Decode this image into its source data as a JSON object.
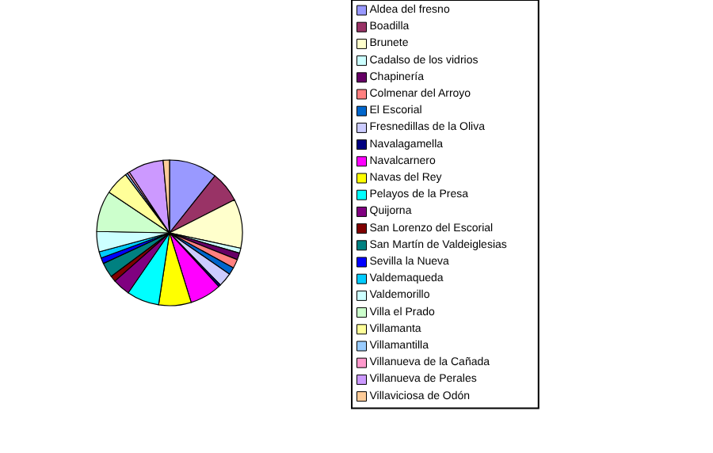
{
  "chart_data": {
    "type": "pie",
    "legend": "right",
    "categories": [
      "Aldea del fresno",
      "Boadilla",
      "Brunete",
      "Cadalso de los vidrios",
      "Chapinería",
      "Colmenar del Arroyo",
      "El Escorial",
      "Fresnedillas de la Oliva",
      "Navalagamella",
      "Navalcarnero",
      "Navas del Rey",
      "Pelayos de la Presa",
      "Quijorna",
      "San Lorenzo del Escorial",
      "San Martín de Valdeiglesias",
      "Sevilla la Nueva",
      "Valdemaqueda",
      "Valdemorillo",
      "Villa el Prado",
      "Villamanta",
      "Villamantilla",
      "Villanueva de la Cañada",
      "Villanueva de Perales",
      "Villaviciosa de Odón"
    ],
    "values": [
      10.7,
      6.8,
      10.9,
      1.1,
      1.5,
      2,
      1.6,
      3.1,
      0.5,
      7,
      7.2,
      7.2,
      3.9,
      1.3,
      3.3,
      1.3,
      1.4,
      4.5,
      9.1,
      5.3,
      0.5,
      0.5,
      7.9,
      1.4
    ],
    "colors": [
      "#9999ff",
      "#993366",
      "#ffffcc",
      "#ccffff",
      "#660066",
      "#ff8080",
      "#0066cc",
      "#ccccff",
      "#000080",
      "#ff00ff",
      "#ffff00",
      "#00ffff",
      "#800080",
      "#800000",
      "#008080",
      "#0000ff",
      "#00ccff",
      "#ccffff",
      "#ccffcc",
      "#ffff99",
      "#99ccff",
      "#ff99cc",
      "#cc99ff",
      "#ffcc99"
    ]
  }
}
